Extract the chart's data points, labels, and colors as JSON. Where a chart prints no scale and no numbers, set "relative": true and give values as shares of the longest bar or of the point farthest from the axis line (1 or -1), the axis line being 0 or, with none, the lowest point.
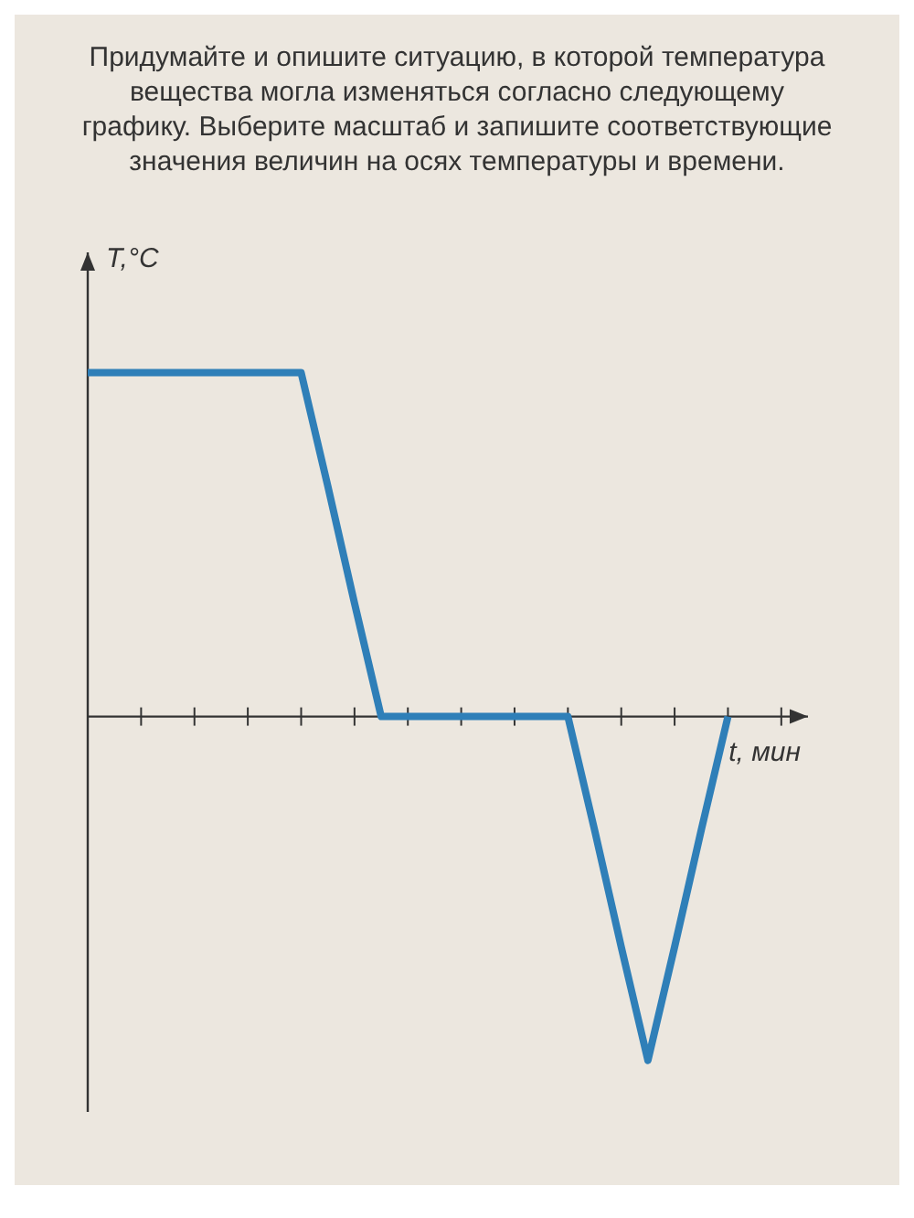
{
  "chart_data": {
    "type": "line",
    "title": "Придумайте и опишите ситуацию, в которой температура вещества могла изменяться согласно следующему графику. Выберите масштаб и запишите соответствующие значения величин на осях температуры и времени.",
    "xlabel": "t, мин",
    "ylabel": "T,°C",
    "relative": true,
    "categories": [
      null,
      null,
      null,
      null,
      null,
      null,
      null,
      null,
      null,
      null,
      null,
      null,
      null,
      null,
      null,
      null,
      null,
      null,
      null,
      null,
      null,
      null,
      null,
      null,
      null
    ],
    "series": [
      {
        "color": "#2f7fb8",
        "values": [
          1,
          1,
          1,
          1,
          1,
          1,
          1,
          1,
          1,
          0.67,
          0.33,
          0,
          0,
          0,
          0,
          0,
          0,
          0,
          0,
          -0.33,
          -0.67,
          -1,
          -0.67,
          -0.33,
          0
        ]
      }
    ],
    "marker": "none",
    "line_style": "solid"
  }
}
